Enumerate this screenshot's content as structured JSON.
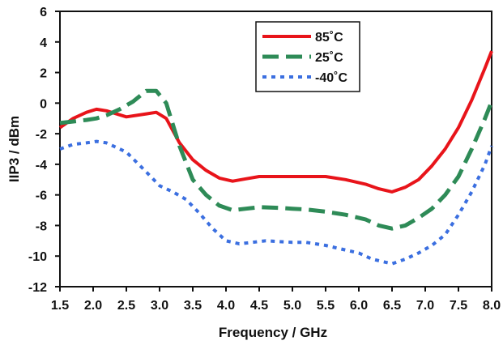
{
  "chart_data": {
    "type": "line",
    "xlabel": "Frequency / GHz",
    "ylabel": "IIP3 / dBm",
    "xlim": [
      1.5,
      8.0
    ],
    "ylim": [
      -12,
      6
    ],
    "x_ticks": [
      "1.5",
      "2.0",
      "2.5",
      "3.0",
      "3.5",
      "4.0",
      "4.5",
      "5.0",
      "5.5",
      "6.0",
      "6.5",
      "7.0",
      "7.5",
      "8.0"
    ],
    "y_ticks": [
      "-12",
      "-10",
      "-8",
      "-6",
      "-4",
      "-2",
      "0",
      "2",
      "4",
      "6"
    ],
    "grid": false,
    "legend_position": "top-center",
    "series": [
      {
        "name": "85˚C",
        "color": "#e8141a",
        "style": "solid",
        "x": [
          1.5,
          1.7,
          1.9,
          2.05,
          2.2,
          2.5,
          2.8,
          2.95,
          3.1,
          3.3,
          3.5,
          3.7,
          3.9,
          4.1,
          4.3,
          4.5,
          4.8,
          5.0,
          5.2,
          5.5,
          5.8,
          6.1,
          6.3,
          6.5,
          6.7,
          6.9,
          7.1,
          7.3,
          7.5,
          7.7,
          7.9,
          8.0
        ],
        "y": [
          -1.6,
          -1.0,
          -0.6,
          -0.4,
          -0.5,
          -0.9,
          -0.7,
          -0.6,
          -1.0,
          -2.6,
          -3.7,
          -4.4,
          -4.9,
          -5.1,
          -4.95,
          -4.8,
          -4.8,
          -4.8,
          -4.8,
          -4.8,
          -5.0,
          -5.3,
          -5.6,
          -5.8,
          -5.5,
          -5.0,
          -4.1,
          -3.0,
          -1.6,
          0.2,
          2.3,
          3.4
        ]
      },
      {
        "name": "25˚C",
        "color": "#2e8b57",
        "style": "dash",
        "x": [
          1.5,
          1.7,
          1.9,
          2.05,
          2.2,
          2.4,
          2.6,
          2.8,
          2.95,
          3.1,
          3.3,
          3.5,
          3.7,
          3.9,
          4.1,
          4.3,
          4.5,
          4.8,
          5.0,
          5.2,
          5.5,
          5.8,
          6.1,
          6.3,
          6.5,
          6.7,
          6.9,
          7.1,
          7.3,
          7.5,
          7.7,
          7.9,
          8.0
        ],
        "y": [
          -1.3,
          -1.2,
          -1.1,
          -1.0,
          -0.8,
          -0.4,
          0.1,
          0.8,
          0.8,
          0.0,
          -2.8,
          -5.0,
          -6.0,
          -6.7,
          -7.0,
          -6.9,
          -6.8,
          -6.85,
          -6.9,
          -6.95,
          -7.1,
          -7.3,
          -7.6,
          -8.0,
          -8.2,
          -8.0,
          -7.5,
          -6.9,
          -6.0,
          -4.8,
          -3.0,
          -1.0,
          0.1
        ]
      },
      {
        "name": "-40˚C",
        "color": "#3b6fe0",
        "style": "dot",
        "x": [
          1.5,
          1.7,
          1.9,
          2.05,
          2.2,
          2.5,
          2.8,
          3.0,
          3.2,
          3.4,
          3.6,
          3.8,
          4.0,
          4.2,
          4.4,
          4.6,
          4.8,
          5.0,
          5.2,
          5.5,
          5.8,
          6.0,
          6.2,
          6.4,
          6.5,
          6.7,
          6.9,
          7.1,
          7.3,
          7.5,
          7.7,
          7.9,
          8.0
        ],
        "y": [
          -3.0,
          -2.7,
          -2.6,
          -2.5,
          -2.6,
          -3.2,
          -4.5,
          -5.4,
          -5.8,
          -6.3,
          -7.2,
          -8.2,
          -9.0,
          -9.2,
          -9.1,
          -9.0,
          -9.05,
          -9.1,
          -9.1,
          -9.3,
          -9.6,
          -9.8,
          -10.2,
          -10.4,
          -10.5,
          -10.2,
          -9.8,
          -9.3,
          -8.6,
          -7.3,
          -5.8,
          -4.0,
          -2.8
        ]
      }
    ]
  }
}
